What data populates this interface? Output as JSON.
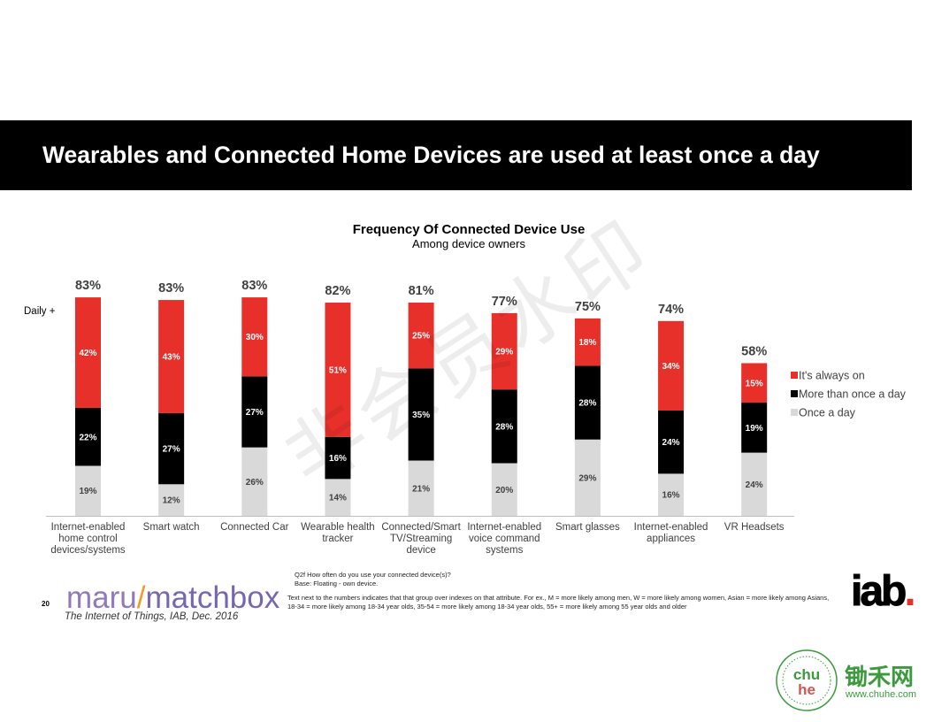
{
  "slide": {
    "title": "Wearables and Connected Home Devices are used at least once a day"
  },
  "chart_data": {
    "type": "bar",
    "stacked": true,
    "title": "Frequency Of Connected Device Use",
    "subtitle": "Among device owners",
    "annotation": "Daily +",
    "categories": [
      "Internet-enabled home control devices/systems",
      "Smart watch",
      "Connected Car",
      "Wearable health tracker",
      "Connected/Smart TV/Streaming device",
      "Internet-enabled voice command systems",
      "Smart glasses",
      "Internet-enabled appliances",
      "VR Headsets"
    ],
    "series": [
      {
        "name": "It's always on",
        "color": "#e8302b",
        "label_color": "#ffffff",
        "values": [
          42,
          43,
          30,
          51,
          25,
          29,
          18,
          34,
          15
        ]
      },
      {
        "name": "More than once a day",
        "color": "#000000",
        "label_color": "#ffffff",
        "values": [
          22,
          27,
          27,
          16,
          35,
          28,
          28,
          24,
          19
        ]
      },
      {
        "name": "Once a day",
        "color": "#d9d9d9",
        "label_color": "#404040",
        "values": [
          19,
          12,
          26,
          14,
          21,
          20,
          29,
          16,
          24
        ]
      }
    ],
    "totals": [
      83,
      83,
      83,
      82,
      81,
      77,
      75,
      74,
      58
    ],
    "value_suffix": "%",
    "ylim": [
      0,
      100
    ],
    "grid": false,
    "legend_position": "right"
  },
  "footnotes": {
    "question": "Q2f How often do you use your connected device(s)?",
    "base": "Base: Floating - own device.",
    "note_lines": [
      "Text next to the numbers indicates that that group over indexes on that attribute.  For ex., M = more likely among men, W = more likely among women, Asian = more likely among Asians,",
      "18-34 = more likely among 18-34 year olds, 35-54 = more likely among 18-34 year olds, 55+ = more likely among 55 year olds and older"
    ]
  },
  "footer": {
    "page_number": "20",
    "logo": {
      "left": "maru",
      "slash": "/",
      "right": "matchbox",
      "left_color": "#9079bd",
      "slash_color": "#f39a2e",
      "right_color": "#7668b0"
    },
    "source": "The Internet of Things, IAB, Dec. 2016",
    "iab_logo": {
      "text": "iab",
      "dot": ".",
      "dot_color": "#e8302b"
    }
  },
  "watermark": {
    "text": "非会员水印"
  },
  "chuhe": {
    "name": "锄禾网",
    "url": "www.chuhe.com",
    "seal_top": "chu",
    "seal_bottom": "he",
    "color": "#3a9a3c"
  }
}
